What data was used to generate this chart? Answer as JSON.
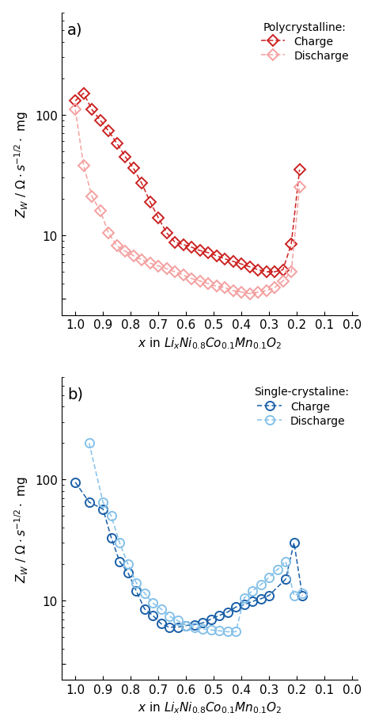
{
  "poly_charge_x": [
    1.0,
    0.97,
    0.94,
    0.91,
    0.88,
    0.85,
    0.82,
    0.79,
    0.76,
    0.73,
    0.7,
    0.67,
    0.64,
    0.61,
    0.58,
    0.55,
    0.52,
    0.49,
    0.46,
    0.43,
    0.4,
    0.37,
    0.34,
    0.31,
    0.28,
    0.25,
    0.22,
    0.19
  ],
  "poly_charge_y": [
    130,
    150,
    110,
    90,
    73,
    58,
    45,
    36,
    27,
    19,
    14,
    10.5,
    8.8,
    8.4,
    8.0,
    7.5,
    7.2,
    6.8,
    6.4,
    6.1,
    5.8,
    5.5,
    5.2,
    5.0,
    5.0,
    5.2,
    8.5,
    35
  ],
  "poly_discharge_x": [
    1.0,
    0.97,
    0.94,
    0.91,
    0.88,
    0.85,
    0.82,
    0.79,
    0.76,
    0.73,
    0.7,
    0.67,
    0.64,
    0.61,
    0.58,
    0.55,
    0.52,
    0.49,
    0.46,
    0.43,
    0.4,
    0.37,
    0.34,
    0.31,
    0.28,
    0.25,
    0.22,
    0.19
  ],
  "poly_discharge_y": [
    110,
    38,
    21,
    16,
    10.5,
    8.2,
    7.4,
    6.8,
    6.3,
    5.9,
    5.6,
    5.3,
    5.0,
    4.7,
    4.4,
    4.2,
    4.0,
    3.8,
    3.7,
    3.5,
    3.4,
    3.3,
    3.4,
    3.5,
    3.7,
    4.2,
    5.0,
    25
  ],
  "single_charge_x": [
    1.0,
    0.95,
    0.9,
    0.87,
    0.84,
    0.81,
    0.78,
    0.75,
    0.72,
    0.69,
    0.66,
    0.63,
    0.6,
    0.57,
    0.54,
    0.51,
    0.48,
    0.45,
    0.42,
    0.39,
    0.36,
    0.33,
    0.3,
    0.24,
    0.21,
    0.18
  ],
  "single_charge_y": [
    95,
    65,
    57,
    33,
    21,
    17,
    12,
    8.5,
    7.5,
    6.4,
    6.0,
    6.0,
    6.2,
    6.3,
    6.5,
    7.0,
    7.5,
    8.0,
    8.8,
    9.2,
    9.8,
    10.3,
    11.0,
    15.0,
    30,
    11.0
  ],
  "single_discharge_x": [
    0.95,
    0.9,
    0.87,
    0.84,
    0.81,
    0.78,
    0.75,
    0.72,
    0.69,
    0.66,
    0.63,
    0.6,
    0.57,
    0.54,
    0.51,
    0.48,
    0.45,
    0.42,
    0.39,
    0.36,
    0.33,
    0.3,
    0.27,
    0.24,
    0.21,
    0.18
  ],
  "single_discharge_y": [
    200,
    65,
    50,
    30,
    20,
    14,
    11.5,
    9.5,
    8.5,
    7.4,
    6.8,
    6.2,
    6.0,
    5.8,
    5.7,
    5.6,
    5.5,
    5.5,
    10.5,
    12.0,
    13.5,
    15.5,
    18.0,
    21.0,
    11.0,
    11.5
  ],
  "poly_charge_color": "#cc2222",
  "poly_discharge_color": "#f4a0a0",
  "single_charge_color": "#1a5fa8",
  "single_discharge_color": "#85c1e9",
  "panel_a_label": "a)",
  "panel_b_label": "b)",
  "legend_title_a": "Polycrystalline:",
  "legend_title_b": "Single-crystaline:",
  "legend_charge": "Charge",
  "legend_discharge": "Discharge",
  "xticks": [
    1.0,
    0.9,
    0.8,
    0.7,
    0.6,
    0.5,
    0.4,
    0.3,
    0.2,
    0.1,
    0.0
  ]
}
